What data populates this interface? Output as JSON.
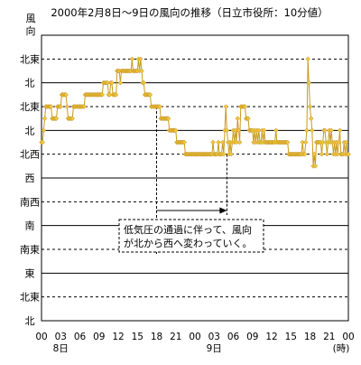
{
  "chart_data": {
    "type": "line",
    "title": "2000年2月8日～9日の風向の推移（日立市役所：10分値）",
    "ylabel": "風向",
    "xlabel_unit": "(時)",
    "y_ticks": [
      "北東",
      "北",
      "北東",
      "北",
      "北西",
      "西",
      "南西",
      "南",
      "南東",
      "東",
      "北東",
      "北"
    ],
    "x_ticks": [
      "00",
      "03",
      "06",
      "09",
      "12",
      "15",
      "18",
      "21",
      "00",
      "03",
      "06",
      "09",
      "12",
      "15",
      "18",
      "21",
      "00"
    ],
    "date_labels": [
      {
        "label": "8日",
        "at_hour": 3
      },
      {
        "label": "9日",
        "at_hour": 27
      }
    ],
    "x_range_hours": [
      0,
      48
    ],
    "annotation": {
      "lines": [
        "低気圧の通過に伴って、風向",
        "が北から西へ変わっていく。"
      ],
      "from_hour": 18,
      "to_hour": 29
    },
    "colors": {
      "line": "#c89a1c",
      "marker": "#f3c740",
      "marker_stroke": "#b8891a"
    },
    "series": [
      {
        "points": [
          [
            0.0,
            3.5
          ],
          [
            0.17,
            3.5
          ],
          [
            0.33,
            3.0
          ],
          [
            0.5,
            2.5
          ],
          [
            0.67,
            2.0
          ],
          [
            0.83,
            2.0
          ],
          [
            1.0,
            2.0
          ],
          [
            1.17,
            2.0
          ],
          [
            1.33,
            2.0
          ],
          [
            1.5,
            2.0
          ],
          [
            1.67,
            2.5
          ],
          [
            1.83,
            2.5
          ],
          [
            2.0,
            2.5
          ],
          [
            2.17,
            2.5
          ],
          [
            2.33,
            2.5
          ],
          [
            2.5,
            2.0
          ],
          [
            2.67,
            2.0
          ],
          [
            2.83,
            2.0
          ],
          [
            3.0,
            2.0
          ],
          [
            3.17,
            1.5
          ],
          [
            3.33,
            1.5
          ],
          [
            3.5,
            1.5
          ],
          [
            3.67,
            1.5
          ],
          [
            3.83,
            1.5
          ],
          [
            4.0,
            2.0
          ],
          [
            4.17,
            2.5
          ],
          [
            4.33,
            2.5
          ],
          [
            4.5,
            2.5
          ],
          [
            4.67,
            2.5
          ],
          [
            4.83,
            2.5
          ],
          [
            5.0,
            2.0
          ],
          [
            5.17,
            2.0
          ],
          [
            5.33,
            2.0
          ],
          [
            5.5,
            2.0
          ],
          [
            5.67,
            2.0
          ],
          [
            5.83,
            2.0
          ],
          [
            6.0,
            2.0
          ],
          [
            6.17,
            2.0
          ],
          [
            6.33,
            2.0
          ],
          [
            6.5,
            2.0
          ],
          [
            6.67,
            2.0
          ],
          [
            6.83,
            1.5
          ],
          [
            7.0,
            1.5
          ],
          [
            7.17,
            1.5
          ],
          [
            7.33,
            1.5
          ],
          [
            7.5,
            1.5
          ],
          [
            7.67,
            1.5
          ],
          [
            7.83,
            1.5
          ],
          [
            8.0,
            1.5
          ],
          [
            8.17,
            1.5
          ],
          [
            8.33,
            1.5
          ],
          [
            8.5,
            1.5
          ],
          [
            8.67,
            1.5
          ],
          [
            8.83,
            1.5
          ],
          [
            9.0,
            1.5
          ],
          [
            9.17,
            1.5
          ],
          [
            9.33,
            1.5
          ],
          [
            9.5,
            1.5
          ],
          [
            9.67,
            1.0
          ],
          [
            9.83,
            1.0
          ],
          [
            10.0,
            1.0
          ],
          [
            10.17,
            1.0
          ],
          [
            10.33,
            1.0
          ],
          [
            10.5,
            1.5
          ],
          [
            10.67,
            1.5
          ],
          [
            10.83,
            1.0
          ],
          [
            11.0,
            1.0
          ],
          [
            11.17,
            1.5
          ],
          [
            11.33,
            1.5
          ],
          [
            11.5,
            1.5
          ],
          [
            11.67,
            1.5
          ],
          [
            11.83,
            0.5
          ],
          [
            12.0,
            0.5
          ],
          [
            12.17,
            0.5
          ],
          [
            12.33,
            1.0
          ],
          [
            12.5,
            0.5
          ],
          [
            12.67,
            0.5
          ],
          [
            12.83,
            0.5
          ],
          [
            13.0,
            0.5
          ],
          [
            13.17,
            0.5
          ],
          [
            13.33,
            0.5
          ],
          [
            13.5,
            0.5
          ],
          [
            13.67,
            0.5
          ],
          [
            13.83,
            0.5
          ],
          [
            14.0,
            0.5
          ],
          [
            14.17,
            0.0
          ],
          [
            14.33,
            0.5
          ],
          [
            14.5,
            0.5
          ],
          [
            14.67,
            0.5
          ],
          [
            14.83,
            0.5
          ],
          [
            15.0,
            0.5
          ],
          [
            15.17,
            0.0
          ],
          [
            15.33,
            0.5
          ],
          [
            15.5,
            0.0
          ],
          [
            15.67,
            0.5
          ],
          [
            15.83,
            1.0
          ],
          [
            16.0,
            1.0
          ],
          [
            16.17,
            1.5
          ],
          [
            16.33,
            1.5
          ],
          [
            16.5,
            1.5
          ],
          [
            16.67,
            1.5
          ],
          [
            16.83,
            1.5
          ],
          [
            17.0,
            1.5
          ],
          [
            17.17,
            2.0
          ],
          [
            17.33,
            2.0
          ],
          [
            17.5,
            2.0
          ],
          [
            17.67,
            2.0
          ],
          [
            17.83,
            2.0
          ],
          [
            18.0,
            2.0
          ],
          [
            18.17,
            2.0
          ],
          [
            18.33,
            2.0
          ],
          [
            18.5,
            2.0
          ],
          [
            18.67,
            2.5
          ],
          [
            18.83,
            2.5
          ],
          [
            19.0,
            2.5
          ],
          [
            19.17,
            2.5
          ],
          [
            19.33,
            2.5
          ],
          [
            19.5,
            2.5
          ],
          [
            19.67,
            2.5
          ],
          [
            19.83,
            2.5
          ],
          [
            20.0,
            3.0
          ],
          [
            20.17,
            3.0
          ],
          [
            20.33,
            3.0
          ],
          [
            20.5,
            3.0
          ],
          [
            20.67,
            3.0
          ],
          [
            20.83,
            3.0
          ],
          [
            21.0,
            3.0
          ],
          [
            21.17,
            3.5
          ],
          [
            21.33,
            3.5
          ],
          [
            21.5,
            3.5
          ],
          [
            21.67,
            3.5
          ],
          [
            21.83,
            3.5
          ],
          [
            22.0,
            3.5
          ],
          [
            22.17,
            3.5
          ],
          [
            22.33,
            3.5
          ],
          [
            22.5,
            4.0
          ],
          [
            22.67,
            4.0
          ],
          [
            22.83,
            4.0
          ],
          [
            23.0,
            4.0
          ],
          [
            23.17,
            4.0
          ],
          [
            23.33,
            4.0
          ],
          [
            23.5,
            4.0
          ],
          [
            23.67,
            4.0
          ],
          [
            23.83,
            4.0
          ],
          [
            24.0,
            4.0
          ],
          [
            24.17,
            4.0
          ],
          [
            24.33,
            4.0
          ],
          [
            24.5,
            4.0
          ],
          [
            24.67,
            4.0
          ],
          [
            24.83,
            4.0
          ],
          [
            25.0,
            4.0
          ],
          [
            25.17,
            4.0
          ],
          [
            25.33,
            4.0
          ],
          [
            25.5,
            4.0
          ],
          [
            25.67,
            4.0
          ],
          [
            25.83,
            4.0
          ],
          [
            26.0,
            4.0
          ],
          [
            26.17,
            4.0
          ],
          [
            26.33,
            4.0
          ],
          [
            26.5,
            4.0
          ],
          [
            26.67,
            4.0
          ],
          [
            26.83,
            3.5
          ],
          [
            27.0,
            4.0
          ],
          [
            27.17,
            4.0
          ],
          [
            27.33,
            4.0
          ],
          [
            27.5,
            4.0
          ],
          [
            27.67,
            3.5
          ],
          [
            27.83,
            4.0
          ],
          [
            28.0,
            4.0
          ],
          [
            28.17,
            4.0
          ],
          [
            28.33,
            3.5
          ],
          [
            28.5,
            4.0
          ],
          [
            28.67,
            3.0
          ],
          [
            28.83,
            2.0
          ],
          [
            29.0,
            3.0
          ],
          [
            29.17,
            3.5
          ],
          [
            29.33,
            4.0
          ],
          [
            29.5,
            3.5
          ],
          [
            29.67,
            4.0
          ],
          [
            29.83,
            3.5
          ],
          [
            30.0,
            3.0
          ],
          [
            30.17,
            3.5
          ],
          [
            30.33,
            3.0
          ],
          [
            30.5,
            3.5
          ],
          [
            30.67,
            2.5
          ],
          [
            30.83,
            3.0
          ],
          [
            31.0,
            3.5
          ],
          [
            31.17,
            2.0
          ],
          [
            31.33,
            2.0
          ],
          [
            31.5,
            2.0
          ],
          [
            31.67,
            2.0
          ],
          [
            31.83,
            2.0
          ],
          [
            32.0,
            2.5
          ],
          [
            32.17,
            2.5
          ],
          [
            32.33,
            2.5
          ],
          [
            32.5,
            3.0
          ],
          [
            32.67,
            3.0
          ],
          [
            32.83,
            3.0
          ],
          [
            33.0,
            3.0
          ],
          [
            33.17,
            3.5
          ],
          [
            33.33,
            3.0
          ],
          [
            33.5,
            3.5
          ],
          [
            33.67,
            3.0
          ],
          [
            33.83,
            3.5
          ],
          [
            34.0,
            3.0
          ],
          [
            34.17,
            3.5
          ],
          [
            34.33,
            3.5
          ],
          [
            34.5,
            3.0
          ],
          [
            34.67,
            3.5
          ],
          [
            34.83,
            3.0
          ],
          [
            35.0,
            3.5
          ],
          [
            35.17,
            3.5
          ],
          [
            35.33,
            3.5
          ],
          [
            35.5,
            3.5
          ],
          [
            35.67,
            3.5
          ],
          [
            35.83,
            3.5
          ],
          [
            36.0,
            3.5
          ],
          [
            36.17,
            3.5
          ],
          [
            36.33,
            3.5
          ],
          [
            36.5,
            3.5
          ],
          [
            36.67,
            3.0
          ],
          [
            36.83,
            3.5
          ],
          [
            37.0,
            3.5
          ],
          [
            37.17,
            3.5
          ],
          [
            37.33,
            3.5
          ],
          [
            37.5,
            3.5
          ],
          [
            37.67,
            3.5
          ],
          [
            37.83,
            3.5
          ],
          [
            38.0,
            3.5
          ],
          [
            38.17,
            3.5
          ],
          [
            38.33,
            3.5
          ],
          [
            38.5,
            3.5
          ],
          [
            38.67,
            4.0
          ],
          [
            38.83,
            4.0
          ],
          [
            39.0,
            4.0
          ],
          [
            39.17,
            4.0
          ],
          [
            39.33,
            4.0
          ],
          [
            39.5,
            4.0
          ],
          [
            39.67,
            4.0
          ],
          [
            39.83,
            4.0
          ],
          [
            40.0,
            4.0
          ],
          [
            40.17,
            4.0
          ],
          [
            40.33,
            4.0
          ],
          [
            40.5,
            4.0
          ],
          [
            40.67,
            4.0
          ],
          [
            40.83,
            3.5
          ],
          [
            41.0,
            4.0
          ],
          [
            41.17,
            4.0
          ],
          [
            41.33,
            3.5
          ],
          [
            41.5,
            3.0
          ],
          [
            41.67,
            0.0
          ],
          [
            41.83,
            1.0
          ],
          [
            42.0,
            2.0
          ],
          [
            42.17,
            2.5
          ],
          [
            42.33,
            3.0
          ],
          [
            42.5,
            4.5
          ],
          [
            42.67,
            4.0
          ],
          [
            42.83,
            4.5
          ],
          [
            43.0,
            3.5
          ],
          [
            43.17,
            3.5
          ],
          [
            43.33,
            3.5
          ],
          [
            43.5,
            3.5
          ],
          [
            43.67,
            3.5
          ],
          [
            43.83,
            4.0
          ],
          [
            44.0,
            3.5
          ],
          [
            44.17,
            3.0
          ],
          [
            44.33,
            3.0
          ],
          [
            44.5,
            3.5
          ],
          [
            44.67,
            4.0
          ],
          [
            44.83,
            3.5
          ],
          [
            45.0,
            3.0
          ],
          [
            45.17,
            3.5
          ],
          [
            45.33,
            3.0
          ],
          [
            45.5,
            3.5
          ],
          [
            45.67,
            4.0
          ],
          [
            45.83,
            3.5
          ],
          [
            46.0,
            4.0
          ],
          [
            46.17,
            3.5
          ],
          [
            46.33,
            4.0
          ],
          [
            46.5,
            3.5
          ],
          [
            46.67,
            3.0
          ],
          [
            46.83,
            4.0
          ],
          [
            47.0,
            4.0
          ],
          [
            47.17,
            4.0
          ],
          [
            47.33,
            3.5
          ],
          [
            47.5,
            4.0
          ],
          [
            47.67,
            3.5
          ],
          [
            47.83,
            4.0
          ],
          [
            48.0,
            4.0
          ]
        ]
      }
    ]
  }
}
